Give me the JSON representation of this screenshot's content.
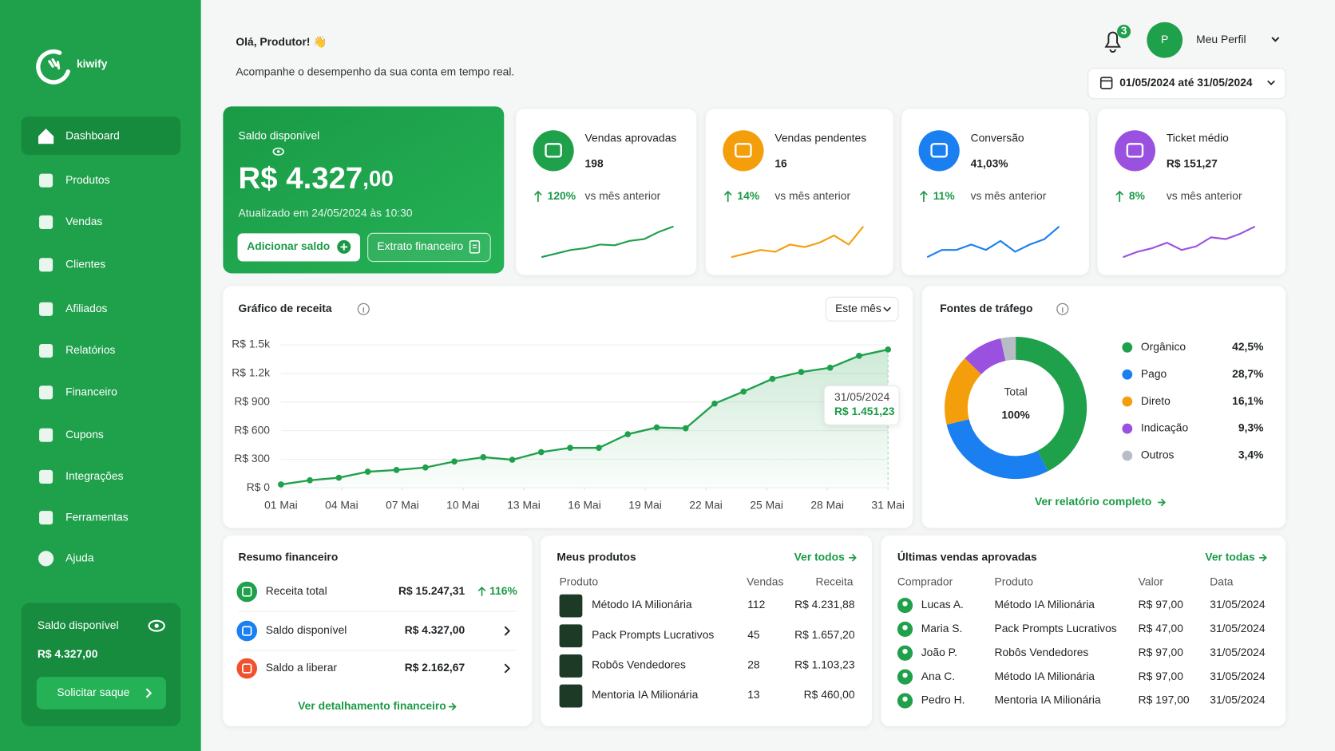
{
  "sidebar": {
    "brand": "kiwify",
    "menu": [
      "Dashboard",
      "Produtos",
      "Vendas",
      "Clientes",
      "Afiliados",
      "Relatórios",
      "Financeiro",
      "Cupons",
      "Integrações",
      "Ferramentas",
      "Ajuda"
    ],
    "balance": {
      "label": "Saldo disponível",
      "value": "R$ 4.327,00",
      "button": "Solicitar saque"
    }
  },
  "header": {
    "greeting": "Olá, Produtor! 👋",
    "subtitle": "Acompanhe o desempenho da sua conta em tempo real.",
    "notifications": 3,
    "avatar": "P",
    "profile": "Meu Perfil",
    "date_range": "01/05/2024 até 31/05/2024"
  },
  "balance_card": {
    "label": "Saldo disponível",
    "value": "R$ 4.327",
    "cents": ",00",
    "updated": "Atualizado em 24/05/2024 às 10:30",
    "actions": [
      "Adicionar saldo",
      "Extrato financeiro"
    ]
  },
  "kpis": [
    {
      "title": "Vendas aprovadas",
      "value": 198,
      "change": "120%",
      "compare": "vs mês anterior",
      "color": "#1fa04b",
      "trend": [
        1,
        2,
        3,
        3.5,
        4.5,
        4.3,
        5.5,
        6,
        8,
        9.5
      ]
    },
    {
      "title": "Vendas pendentes",
      "value": 16,
      "change": "14%",
      "compare": "vs mês anterior",
      "color": "#f59e0b",
      "trend": [
        1,
        2,
        3,
        2.5,
        4.5,
        3.8,
        5,
        7,
        4.5,
        9.5
      ]
    },
    {
      "title": "Conversão",
      "value": "41,03%",
      "change": "11%",
      "compare": "vs mês anterior",
      "color": "#1a7ff0",
      "trend": [
        1,
        3,
        3,
        4.5,
        3,
        5.5,
        2.5,
        4.5,
        6,
        9.5
      ]
    },
    {
      "title": "Ticket médio",
      "value": "R$ 151,27",
      "change": "8%",
      "compare": "vs mês anterior",
      "color": "#9b51e0",
      "trend": [
        1,
        2.5,
        3.5,
        5,
        3,
        4,
        6.5,
        6,
        7.5,
        9.5
      ]
    }
  ],
  "revenue_chart": {
    "type": "line",
    "title": "Gráfico de receita",
    "period": "Este mês",
    "x": [
      1,
      2.43,
      3.86,
      5.29,
      6.71,
      8.14,
      9.57,
      11,
      12.43,
      13.86,
      15.29,
      16.71,
      18.14,
      19.57,
      21,
      22.43,
      23.86,
      25.29,
      26.71,
      28.14,
      29.57,
      31
    ],
    "values": [
      36,
      80,
      107,
      170,
      188,
      214,
      277,
      322,
      295,
      375,
      420,
      420,
      563,
      634,
      625,
      884,
      1010,
      1144,
      1215,
      1260,
      1385,
      1451.23
    ],
    "xlim": [
      1,
      31
    ],
    "xticks": [
      {
        "value": 1,
        "label": "01 Mai"
      },
      {
        "value": 4,
        "label": "04 Mai"
      },
      {
        "value": 7,
        "label": "07 Mai"
      },
      {
        "value": 10,
        "label": "10 Mai"
      },
      {
        "value": 13,
        "label": "13 Mai"
      },
      {
        "value": 16,
        "label": "16 Mai"
      },
      {
        "value": 19,
        "label": "19 Mai"
      },
      {
        "value": 22,
        "label": "22 Mai"
      },
      {
        "value": 25,
        "label": "25 Mai"
      },
      {
        "value": 28,
        "label": "28 Mai"
      },
      {
        "value": 31,
        "label": "31 Mai"
      }
    ],
    "ylim": [
      0,
      1500
    ],
    "yticks": [
      {
        "value": 0,
        "label": "R$ 0"
      },
      {
        "value": 300,
        "label": "R$ 300"
      },
      {
        "value": 600,
        "label": "R$ 600"
      },
      {
        "value": 900,
        "label": "R$ 900"
      },
      {
        "value": 1200,
        "label": "R$ 1.2k"
      },
      {
        "value": 1500,
        "label": "R$ 1.5k"
      }
    ],
    "color": "#1fa04b",
    "grid": true,
    "tooltip": {
      "date": "31/05/2024",
      "value": "R$ 1.451,23"
    }
  },
  "traffic_chart": {
    "type": "pie",
    "title": "Fontes de tráfego",
    "center_label": "Total",
    "center_value": "100%",
    "categories": [
      "Orgânico",
      "Pago",
      "Direto",
      "Indicação",
      "Outros"
    ],
    "values": [
      42.5,
      28.7,
      16.1,
      9.3,
      3.4
    ],
    "value_labels": [
      "42,5%",
      "28,7%",
      "16,1%",
      "9,3%",
      "3,4%"
    ],
    "colors": [
      "#1fa04b",
      "#1a7ff0",
      "#f59e0b",
      "#9b51e0",
      "#b8bcc4"
    ],
    "link": "Ver relatório completo"
  },
  "finance_summary": {
    "title": "Resumo financeiro",
    "rows": [
      {
        "label": "Receita total",
        "value": "R$ 15.247,31",
        "change": "116%"
      },
      {
        "label": "Saldo disponível",
        "value": "R$ 4.327,00"
      },
      {
        "label": "Saldo a liberar",
        "value": "R$ 2.162,67"
      }
    ],
    "link": "Ver detalhamento financeiro"
  },
  "products": {
    "title": "Meus produtos",
    "link": "Ver todos",
    "headers": [
      "Produto",
      "Vendas",
      "Receita"
    ],
    "rows": [
      [
        "Método IA Milionária",
        112,
        "R$ 4.231,88"
      ],
      [
        "Pack Prompts Lucrativos",
        45,
        "R$ 1.657,20"
      ],
      [
        "Robôs Vendedores",
        28,
        "R$ 1.103,23"
      ],
      [
        "Mentoria IA Milionária",
        13,
        "R$ 460,00"
      ]
    ]
  },
  "recent_sales": {
    "title": "Últimas vendas aprovadas",
    "link": "Ver todas",
    "headers": [
      "Comprador",
      "Produto",
      "Valor",
      "Data"
    ],
    "rows": [
      [
        "Lucas A.",
        "Método IA Milionária",
        "R$ 97,00",
        "31/05/2024"
      ],
      [
        "Maria S.",
        "Pack Prompts Lucrativos",
        "R$ 47,00",
        "31/05/2024"
      ],
      [
        "João P.",
        "Robôs Vendedores",
        "R$ 97,00",
        "31/05/2024"
      ],
      [
        "Ana C.",
        "Método IA Milionária",
        "R$ 97,00",
        "31/05/2024"
      ],
      [
        "Pedro H.",
        "Mentoria IA Milionária",
        "R$ 197,00",
        "31/05/2024"
      ]
    ]
  }
}
